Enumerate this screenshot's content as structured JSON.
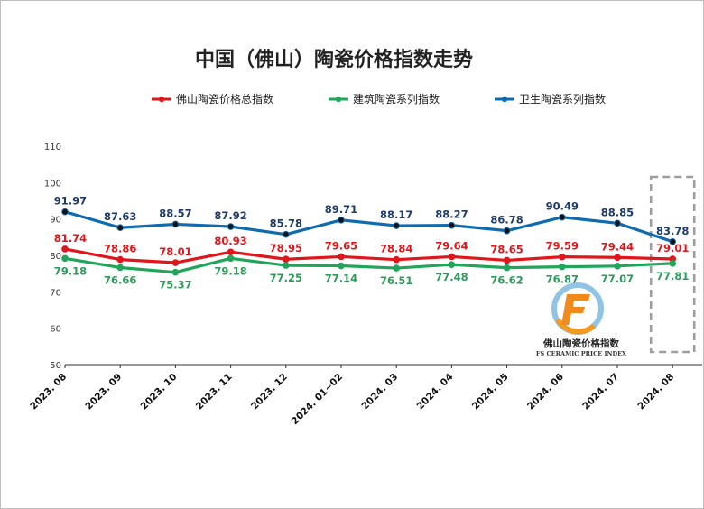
{
  "chart_data": {
    "type": "line",
    "title": "中国（佛山）陶瓷价格指数走势",
    "categories": [
      "2023. 08",
      "2023. 09",
      "2023. 10",
      "2023. 11",
      "2023. 12",
      "2024. 01~02",
      "2024. 03",
      "2024. 04",
      "2024. 05",
      "2024. 06",
      "2024. 07",
      "2024. 08"
    ],
    "series": [
      {
        "name": "佛山陶瓷价格总指数",
        "color": "#e0161b",
        "label_color": "#e0161b",
        "label_position": "above",
        "values": [
          81.74,
          78.86,
          78.01,
          80.93,
          78.95,
          79.65,
          78.84,
          79.64,
          78.65,
          79.59,
          79.44,
          79.01
        ]
      },
      {
        "name": "建筑陶瓷系列指数",
        "color": "#21a55a",
        "label_color": "#2e9a5c",
        "label_position": "below",
        "values": [
          79.18,
          76.66,
          75.37,
          79.18,
          77.25,
          77.14,
          76.51,
          77.48,
          76.62,
          76.87,
          77.07,
          77.81
        ]
      },
      {
        "name": "卫生陶瓷系列指数",
        "color": "#0e6bb0",
        "label_color": "#1f3c66",
        "label_position": "above",
        "values": [
          91.97,
          87.63,
          88.57,
          87.92,
          85.78,
          89.71,
          88.17,
          88.27,
          86.78,
          90.49,
          88.85,
          83.78
        ]
      }
    ],
    "yticks": [
      50,
      60,
      70,
      80,
      90,
      100,
      110
    ],
    "ylim": [
      50,
      110
    ],
    "legend": "top",
    "grid": false,
    "highlight_category": "2024. 08",
    "watermark": {
      "cn": "佛山陶瓷价格指数",
      "en": "FS CERAMIC PRICE INDEX"
    }
  }
}
